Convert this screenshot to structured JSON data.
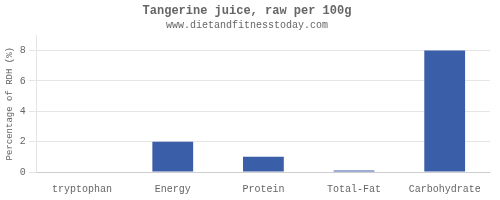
{
  "chart_data": {
    "type": "bar",
    "title": "Tangerine juice, raw per 100g",
    "subtitle": "www.dietandfitnesstoday.com",
    "categories": [
      "tryptophan",
      "Energy",
      "Protein",
      "Total-Fat",
      "Carbohydrate"
    ],
    "values": [
      0.0,
      2.0,
      1.0,
      0.1,
      8.0
    ],
    "color": "#3a5ea8",
    "ylabel": "Percentage of RDH (%)",
    "ylim": [
      0,
      9
    ],
    "yticks": [
      0,
      2,
      4,
      6,
      8
    ],
    "grid": true
  }
}
